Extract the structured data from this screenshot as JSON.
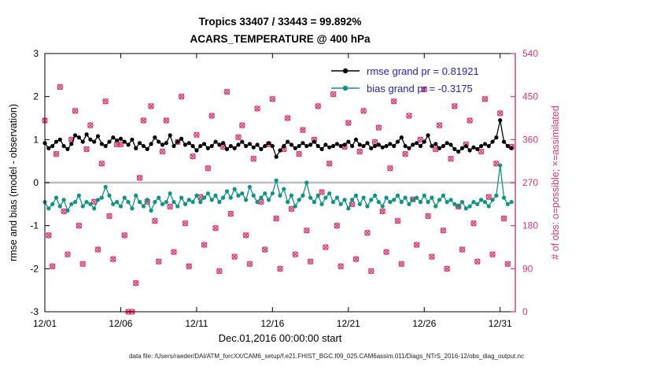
{
  "colors": {
    "rmse": "#000000",
    "bias": "#0c9485",
    "obs": "#e2346c",
    "legend_text": "#2222cc",
    "zero_line": "#bdbdbd",
    "axis": "#000000",
    "right_axis": "#e2346c",
    "background": "#ffffff"
  },
  "footer": {
    "data_file_line": "data file: /Users/raeder/DAI/ATM_forcXX/CAM6_setup/f.e21.FHIST_BGC.f09_025.CAM6assim.011/Diags_NTrS_2016-12/obs_diag_output.nc"
  },
  "chart_data": {
    "type": "line",
    "title_line1": "Tropics 33407 / 33443 = 99.892%",
    "title_line2": "ACARS_TEMPERATURE @ 400 hPa",
    "legend": [
      {
        "label": "rmse grand pr = 0.81921",
        "series": "rmse"
      },
      {
        "label": "bias grand pr = -0.3175",
        "series": "bias"
      }
    ],
    "x_axis": {
      "label": "Dec.01,2016 00:00:00 start",
      "tick_labels": [
        "12/01",
        "12/06",
        "12/11",
        "12/16",
        "12/21",
        "12/26",
        "12/31"
      ],
      "tick_days": [
        1,
        6,
        11,
        16,
        21,
        26,
        31
      ],
      "range_days": [
        1,
        32
      ]
    },
    "y_left": {
      "label": "rmse and bias (model - observation)",
      "lim": [
        -3,
        3
      ],
      "ticks": [
        3,
        2,
        1,
        0,
        -1,
        -2,
        -3
      ]
    },
    "y_right": {
      "label": "# of obs: o=possible; ×=assimilated",
      "lim": [
        0,
        540
      ],
      "ticks": [
        540,
        450,
        360,
        270,
        180,
        90,
        0
      ]
    },
    "x": {
      "start_day": 1,
      "step_days": 0.25,
      "count": 124
    },
    "series": [
      {
        "name": "rmse",
        "axis": "left",
        "grand": 0.81921,
        "marker": "filled-circle",
        "values": [
          0.92,
          0.8,
          0.85,
          0.95,
          1.0,
          0.85,
          0.78,
          0.9,
          1.1,
          1.05,
          0.95,
          1.12,
          1.0,
          0.95,
          1.08,
          0.9,
          0.85,
          0.95,
          1.05,
          0.98,
          1.02,
          0.95,
          0.88,
          1.0,
          0.8,
          0.92,
          0.85,
          0.78,
          0.9,
          1.05,
          0.95,
          0.88,
          0.92,
          1.1,
          0.85,
          0.95,
          1.02,
          0.88,
          0.92,
          0.85,
          0.75,
          0.85,
          0.9,
          0.8,
          0.85,
          0.95,
          0.88,
          0.92,
          0.78,
          0.85,
          0.8,
          0.88,
          0.95,
          0.85,
          0.9,
          0.82,
          0.88,
          0.78,
          0.85,
          0.92,
          0.85,
          0.6,
          0.75,
          0.85,
          0.95,
          0.88,
          0.8,
          0.85,
          0.92,
          0.85,
          0.88,
          0.95,
          0.85,
          0.78,
          0.88,
          0.82,
          0.85,
          0.9,
          0.85,
          0.88,
          0.95,
          0.85,
          1.0,
          0.88,
          0.85,
          0.92,
          0.8,
          0.85,
          0.88,
          0.82,
          0.85,
          0.9,
          0.85,
          0.95,
          1.05,
          0.85,
          0.8,
          0.88,
          0.92,
          0.85,
          0.95,
          1.1,
          0.85,
          0.9,
          0.8,
          0.85,
          0.92,
          0.88,
          0.78,
          0.72,
          0.8,
          0.85,
          0.75,
          0.82,
          0.78,
          0.85,
          0.9,
          0.85,
          0.95,
          1.05,
          1.45,
          0.95,
          0.85,
          0.8
        ]
      },
      {
        "name": "bias",
        "axis": "left",
        "grand": -0.3175,
        "marker": "filled-circle",
        "values": [
          -0.45,
          -0.6,
          -0.5,
          -0.35,
          -0.55,
          -0.4,
          -0.65,
          -0.5,
          -0.45,
          -0.3,
          -0.55,
          -0.45,
          -0.5,
          -0.6,
          -0.4,
          -0.35,
          -0.1,
          -0.3,
          -0.5,
          -0.45,
          -0.55,
          -0.35,
          -0.45,
          -0.6,
          -0.3,
          -0.45,
          -0.55,
          -0.4,
          -0.65,
          -0.45,
          -0.35,
          -0.5,
          -0.45,
          -0.25,
          -0.45,
          -0.55,
          -0.35,
          -0.5,
          -0.4,
          -0.45,
          -0.3,
          -0.45,
          -0.35,
          -0.25,
          -0.4,
          -0.3,
          -0.45,
          -0.35,
          -0.2,
          -0.35,
          -0.15,
          -0.3,
          -0.25,
          -0.4,
          -0.1,
          -0.3,
          -0.45,
          -0.35,
          -0.25,
          -0.4,
          -0.25,
          0.05,
          -0.3,
          -0.15,
          -0.45,
          -0.3,
          -0.55,
          -0.4,
          -0.3,
          0.0,
          -0.35,
          -0.45,
          -0.3,
          -0.5,
          -0.35,
          -0.25,
          -0.45,
          -0.35,
          -0.5,
          -0.4,
          -0.6,
          -0.4,
          -0.3,
          -0.5,
          -0.35,
          -0.55,
          -0.4,
          -0.3,
          -0.45,
          -0.55,
          -0.35,
          -0.45,
          -0.4,
          -0.3,
          -0.45,
          -0.35,
          -0.5,
          -0.4,
          -0.35,
          -0.45,
          -0.3,
          -0.45,
          -0.35,
          -0.55,
          -0.4,
          -0.3,
          -0.45,
          -0.4,
          -0.5,
          -0.55,
          -0.45,
          -0.6,
          -0.55,
          -0.45,
          -0.5,
          -0.4,
          -0.45,
          -0.55,
          -0.4,
          -0.3,
          0.4,
          -0.35,
          -0.5,
          -0.45
        ]
      },
      {
        "name": "obs_possible_and_assimilated",
        "axis": "right",
        "marker": "circle-plus-x",
        "values": [
          400,
          160,
          95,
          330,
          470,
          210,
          120,
          360,
          420,
          180,
          100,
          340,
          390,
          230,
          130,
          310,
          440,
          200,
          110,
          350,
          350,
          160,
          0,
          0,
          60,
          280,
          400,
          230,
          430,
          190,
          105,
          335,
          400,
          220,
          125,
          355,
          450,
          185,
          95,
          325,
          370,
          240,
          140,
          300,
          410,
          175,
          85,
          345,
          460,
          205,
          115,
          365,
          390,
          160,
          100,
          320,
          425,
          230,
          130,
          350,
          445,
          195,
          90,
          340,
          405,
          215,
          120,
          330,
          380,
          170,
          105,
          360,
          430,
          250,
          135,
          310,
          455,
          180,
          95,
          345,
          395,
          225,
          110,
          335,
          420,
          165,
          85,
          355,
          385,
          210,
          125,
          300,
          440,
          190,
          100,
          330,
          410,
          235,
          140,
          360,
          465,
          200,
          115,
          340,
          390,
          170,
          90,
          320,
          430,
          220,
          130,
          350,
          400,
          185,
          105,
          335,
          445,
          240,
          120,
          310,
          415,
          195,
          100,
          345
        ]
      }
    ]
  }
}
